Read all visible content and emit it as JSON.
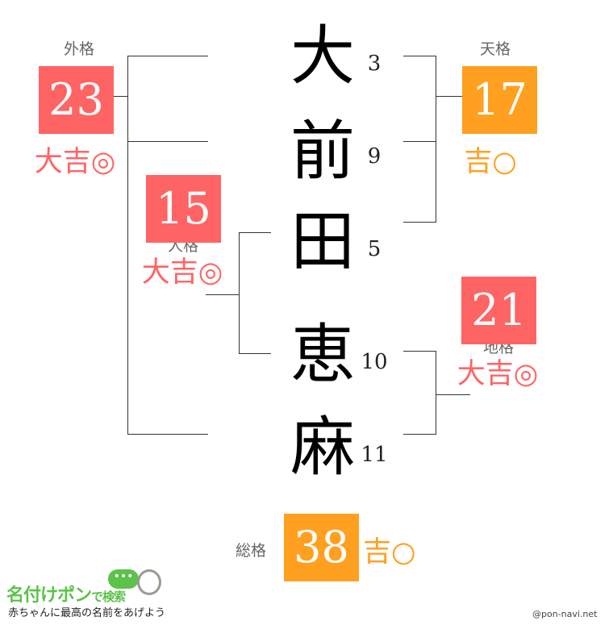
{
  "name_chars": [
    {
      "char": "大",
      "strokes": "3"
    },
    {
      "char": "前",
      "strokes": "9"
    },
    {
      "char": "田",
      "strokes": "5"
    },
    {
      "char": "恵",
      "strokes": "10"
    },
    {
      "char": "麻",
      "strokes": "11"
    }
  ],
  "gaikaku": {
    "label": "外格",
    "value": "23",
    "result": "大吉◎",
    "color": "#ff6464"
  },
  "tenkaku": {
    "label": "天格",
    "value": "17",
    "result": "吉○",
    "color": "#ffa020"
  },
  "jinkaku": {
    "label": "人格",
    "value": "15",
    "result": "大吉◎",
    "color": "#ff6464"
  },
  "chikaku": {
    "label": "地格",
    "value": "21",
    "result": "大吉◎",
    "color": "#ff6464"
  },
  "soukaku": {
    "label": "総格",
    "value": "38",
    "result": "吉○",
    "color": "#ffa020"
  },
  "footer": {
    "logo": "名付けポン",
    "logo_suffix": "で検索",
    "tagline": "赤ちゃんに最高の名前をあげよう",
    "credit": "@pon-navi.net"
  }
}
